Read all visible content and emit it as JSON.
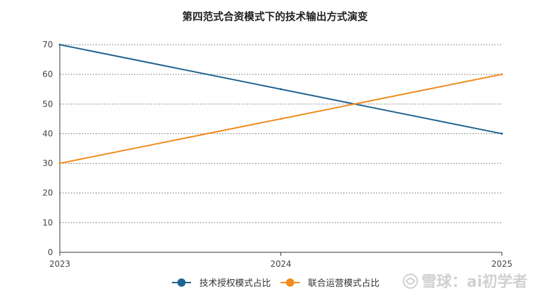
{
  "chart_data": {
    "type": "line",
    "title": "第四范式合资模式下的技术输出方式演变",
    "x": [
      "2023",
      "2024",
      "2025"
    ],
    "ylim": [
      0,
      70
    ],
    "yticks": [
      0,
      10,
      20,
      30,
      40,
      50,
      60,
      70
    ],
    "grid": true,
    "legend_position": "bottom",
    "series": [
      {
        "name": "技术授权模式占比",
        "values": [
          70,
          55,
          40
        ],
        "color": "#1f6391"
      },
      {
        "name": "联合运营模式占比",
        "values": [
          30,
          45,
          60
        ],
        "color": "#f28a1e"
      }
    ]
  },
  "watermark": {
    "text": "雪球：ai初学者",
    "icon": "xueqiu-logo-icon"
  }
}
